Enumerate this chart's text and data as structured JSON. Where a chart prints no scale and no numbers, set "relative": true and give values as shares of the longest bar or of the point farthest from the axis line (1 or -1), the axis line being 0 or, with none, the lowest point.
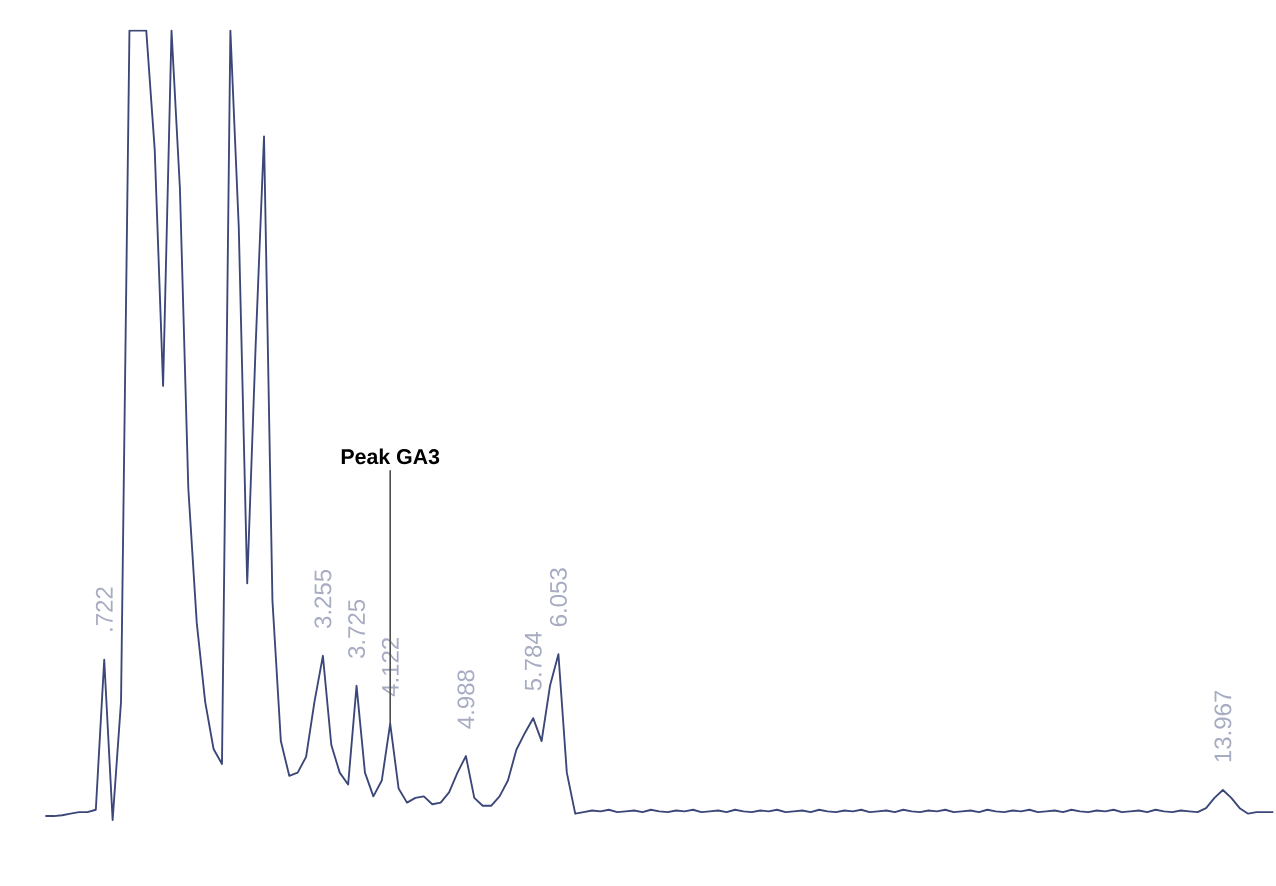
{
  "chart_data": {
    "type": "line",
    "relative": true,
    "color": "#3b4778",
    "categories": [
      null,
      null,
      null,
      null,
      null,
      null,
      null,
      ".722",
      null,
      null,
      null,
      null,
      null,
      null,
      null,
      null,
      null,
      null,
      null,
      null,
      null,
      null,
      null,
      null,
      null,
      null,
      null,
      null,
      null,
      null,
      null,
      null,
      null,
      "3.255",
      null,
      null,
      null,
      "3.725",
      null,
      null,
      null,
      "4.122",
      null,
      null,
      null,
      null,
      null,
      null,
      null,
      null,
      "4.988",
      null,
      null,
      null,
      null,
      null,
      null,
      null,
      "5.784",
      null,
      null,
      "6.053",
      null,
      null,
      null,
      null,
      null,
      null,
      null,
      null,
      null,
      null,
      null,
      null,
      null,
      null,
      null,
      null,
      null,
      null,
      null,
      null,
      null,
      null,
      null,
      null,
      null,
      null,
      null,
      null,
      null,
      null,
      null,
      null,
      null,
      null,
      null,
      null,
      null,
      null,
      null,
      null,
      null,
      null,
      null,
      null,
      null,
      null,
      null,
      null,
      null,
      null,
      null,
      null,
      null,
      null,
      null,
      null,
      null,
      null,
      null,
      null,
      null,
      null,
      null,
      null,
      null,
      null,
      null,
      null,
      null,
      null,
      null,
      null,
      null,
      null,
      null,
      null,
      null,
      null,
      "13.967",
      null,
      null,
      null,
      null,
      null,
      null
    ],
    "values": [
      0.005,
      0.005,
      0.006,
      0.008,
      0.01,
      0.01,
      0.013,
      0.203,
      0.0,
      0.15,
      1.0,
      1.0,
      1.0,
      0.85,
      0.55,
      1.0,
      0.8,
      0.42,
      0.25,
      0.15,
      0.09,
      0.071,
      1.0,
      0.75,
      0.3,
      0.6,
      0.866,
      0.278,
      0.1,
      0.056,
      0.06,
      0.08,
      0.15,
      0.208,
      0.095,
      0.06,
      0.045,
      0.17,
      0.06,
      0.03,
      0.05,
      0.122,
      0.04,
      0.022,
      0.028,
      0.03,
      0.02,
      0.022,
      0.035,
      0.06,
      0.081,
      0.028,
      0.018,
      0.018,
      0.03,
      0.05,
      0.089,
      0.11,
      0.129,
      0.1,
      0.17,
      0.21,
      0.06,
      0.008,
      0.01,
      0.012,
      0.011,
      0.013,
      0.01,
      0.011,
      0.012,
      0.01,
      0.013,
      0.011,
      0.01,
      0.012,
      0.011,
      0.013,
      0.01,
      0.011,
      0.012,
      0.01,
      0.013,
      0.011,
      0.01,
      0.012,
      0.011,
      0.013,
      0.01,
      0.011,
      0.012,
      0.01,
      0.013,
      0.011,
      0.01,
      0.012,
      0.011,
      0.013,
      0.01,
      0.011,
      0.012,
      0.01,
      0.013,
      0.011,
      0.01,
      0.012,
      0.011,
      0.013,
      0.01,
      0.011,
      0.012,
      0.01,
      0.013,
      0.011,
      0.01,
      0.012,
      0.011,
      0.013,
      0.01,
      0.011,
      0.012,
      0.01,
      0.013,
      0.011,
      0.01,
      0.012,
      0.011,
      0.013,
      0.01,
      0.011,
      0.012,
      0.01,
      0.013,
      0.011,
      0.01,
      0.012,
      0.011,
      0.01,
      0.015,
      0.028,
      0.038,
      0.028,
      0.015,
      0.008,
      0.01,
      0.01,
      0.01
    ],
    "annotations": [
      {
        "text": "Peak GA3",
        "x": "4.122",
        "y": 0.122
      }
    ]
  }
}
